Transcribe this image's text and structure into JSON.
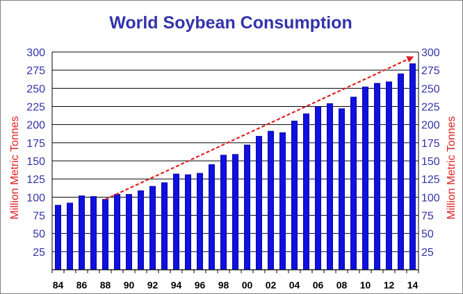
{
  "colors": {
    "title": "#3333aa",
    "tick": "#3333aa",
    "axis_label": "#e02020",
    "bar": "#1010e0",
    "bar_edge": "#000080",
    "trend": "#e02020",
    "grid": "#000000",
    "xtick": "#000000"
  },
  "chart_data": {
    "type": "bar",
    "title": "World Soybean Consumption",
    "ylabel": "Million Metric Tonnes",
    "ylabel_right": "Million Metric Tonnes",
    "ylim": [
      0,
      300
    ],
    "y_ticks": [
      "25",
      "50",
      "75",
      "100",
      "125",
      "150",
      "175",
      "200",
      "225",
      "250",
      "275",
      "300"
    ],
    "y_ticks_left": [
      "25",
      "50",
      "75",
      "100",
      "125",
      "150",
      "175",
      "200",
      "225",
      "250",
      "275",
      "300"
    ],
    "y_ticks_right": [
      "25",
      "50",
      "75",
      "100",
      "125",
      "150",
      "175",
      "200",
      "225",
      "250",
      "275",
      "300"
    ],
    "grid": "horizontal",
    "categories": [
      "84",
      "85",
      "86",
      "87",
      "88",
      "89",
      "90",
      "91",
      "92",
      "93",
      "94",
      "95",
      "96",
      "97",
      "98",
      "99",
      "00",
      "01",
      "02",
      "03",
      "04",
      "05",
      "06",
      "07",
      "08",
      "09",
      "10",
      "11",
      "12",
      "13",
      "14"
    ],
    "x_tick_labels": [
      "84",
      "86",
      "88",
      "90",
      "92",
      "94",
      "96",
      "98",
      "00",
      "02",
      "04",
      "06",
      "08",
      "10",
      "12",
      "14"
    ],
    "values": [
      89,
      92,
      102,
      101,
      97,
      104,
      104,
      109,
      115,
      120,
      132,
      131,
      133,
      145,
      158,
      159,
      172,
      184,
      191,
      189,
      205,
      215,
      225,
      229,
      222,
      238,
      252,
      257,
      259,
      270,
      284
    ],
    "annotations": [
      {
        "type": "trend-arrow",
        "from": {
          "x": "88",
          "y": 97
        },
        "to": {
          "x": "14",
          "y": 293
        }
      }
    ]
  }
}
